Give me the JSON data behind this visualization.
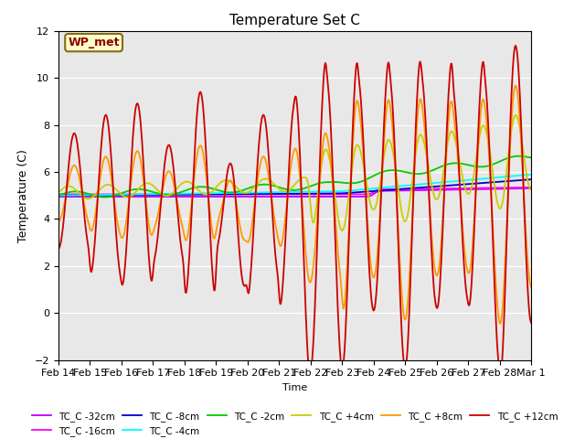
{
  "title": "Temperature Set C",
  "xlabel": "Time",
  "ylabel": "Temperature (C)",
  "ylim": [
    -2,
    12
  ],
  "xlim": [
    0,
    15
  ],
  "yticks": [
    -2,
    0,
    2,
    4,
    6,
    8,
    10,
    12
  ],
  "x_tick_labels": [
    "Feb 14",
    "Feb 15",
    "Feb 16",
    "Feb 17",
    "Feb 18",
    "Feb 19",
    "Feb 20",
    "Feb 21",
    "Feb 22",
    "Feb 23",
    "Feb 24",
    "Feb 25",
    "Feb 26",
    "Feb 27",
    "Feb 28",
    "Mar 1"
  ],
  "wp_met_label": "WP_met",
  "series_colors": {
    "TC_C -32cm": "#bf00ff",
    "TC_C -16cm": "#ff00ff",
    "TC_C -8cm": "#0000cc",
    "TC_C -4cm": "#00ffff",
    "TC_C -2cm": "#00cc00",
    "TC_C +4cm": "#cccc00",
    "TC_C +8cm": "#ff9900",
    "TC_C +12cm": "#cc0000"
  },
  "background_color": "#e8e8e8"
}
